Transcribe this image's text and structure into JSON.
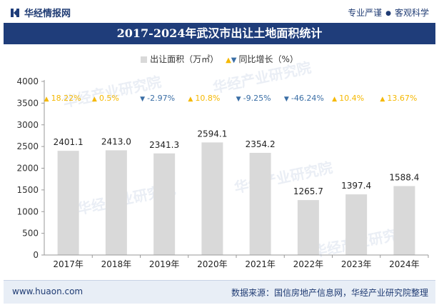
{
  "header": {
    "brand": "华经情报网",
    "slogan_left": "专业严谨",
    "slogan_right": "客观科学"
  },
  "title": "2017-2024年武汉市出让土地面积统计",
  "legend": {
    "area_label": "出让面积（万㎡）",
    "growth_label": "同比增长（%）"
  },
  "watermark": {
    "text": "华经产业研究院",
    "url": "www.huaon.com"
  },
  "footer": {
    "site": "www.huaon.com",
    "source": "数据来源：国信房地产信息网，华经产业研究院整理"
  },
  "colors": {
    "bar": "#d9d9d9",
    "up": "#f5b800",
    "down": "#3a6ea5",
    "title_bg": "#1f3d7a"
  },
  "chart_data": {
    "type": "bar",
    "categories": [
      "2017年",
      "2018年",
      "2019年",
      "2020年",
      "2021年",
      "2022年",
      "2023年",
      "2024年"
    ],
    "series": [
      {
        "name": "出让面积（万㎡）",
        "values": [
          2401.1,
          2413.0,
          2341.3,
          2594.1,
          2354.2,
          1265.7,
          1397.4,
          1588.4
        ]
      },
      {
        "name": "同比增长（%）",
        "values": [
          18.22,
          0.5,
          -2.97,
          10.8,
          -9.25,
          -46.24,
          10.4,
          13.67
        ]
      }
    ],
    "value_labels": [
      "2401.1",
      "2413.0",
      "2341.3",
      "2594.1",
      "2354.2",
      "1265.7",
      "1397.4",
      "1588.4"
    ],
    "growth_labels": [
      "18.22%",
      "0.5%",
      "-2.97%",
      "10.8%",
      "-9.25%",
      "-46.24%",
      "10.4%",
      "13.67%"
    ],
    "yticks": [
      0,
      500,
      1000,
      1500,
      2000,
      2500,
      3000,
      3500,
      4000
    ],
    "ylim": [
      0,
      4000
    ],
    "title": "2017-2024年武汉市出让土地面积统计",
    "xlabel": "",
    "ylabel": ""
  }
}
